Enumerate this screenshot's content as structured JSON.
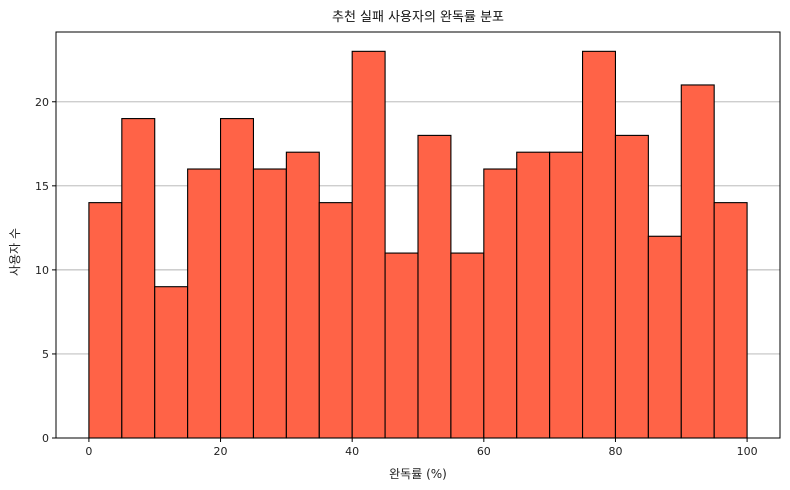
{
  "chart_data": {
    "type": "bar",
    "subtype": "histogram",
    "title": "추천 실패 사용자의 완독률 분포",
    "xlabel": "완독률 (%)",
    "ylabel": "사용자 수",
    "bin_edges": [
      0,
      5,
      10,
      15,
      20,
      25,
      30,
      35,
      40,
      45,
      50,
      55,
      60,
      65,
      70,
      75,
      80,
      85,
      90,
      95,
      100
    ],
    "values": [
      14,
      19,
      9,
      16,
      19,
      16,
      17,
      14,
      23,
      11,
      18,
      11,
      16,
      17,
      17,
      23,
      18,
      12,
      21,
      14
    ],
    "xlim": [
      -5,
      105
    ],
    "ylim": [
      0,
      24.15
    ],
    "x_ticks": [
      0,
      20,
      40,
      60,
      80,
      100
    ],
    "y_ticks": [
      0,
      5,
      10,
      15,
      20
    ],
    "grid": "y-axis horizontal lines",
    "legend": "none",
    "colors": {
      "bar_fill": "#ff6347",
      "bar_edge": "#000000",
      "grid": "#b0b0b0"
    }
  }
}
